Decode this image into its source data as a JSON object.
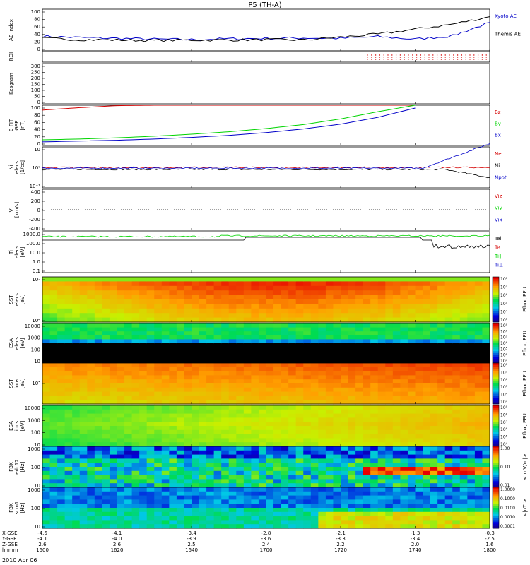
{
  "title": "P5 (TH-A)",
  "date_label": "2010 Apr 06",
  "colors": {
    "red": "#d40000",
    "green": "#00d400",
    "blue": "#0000c8",
    "black": "#000000"
  },
  "chart_data": [
    {
      "id": "ae",
      "type": "line",
      "ylabel": "AE Index",
      "yticks": [
        "100",
        "80",
        "60",
        "40",
        "20",
        "0"
      ],
      "legend": [
        {
          "name": "Kyoto AE",
          "color": "#0000c8"
        },
        {
          "name": "Themis AE",
          "color": "#000000"
        }
      ],
      "x_minutes": [
        0,
        10,
        20,
        30,
        40,
        50,
        60,
        70,
        80,
        90,
        100,
        110,
        120
      ],
      "series": [
        {
          "name": "Kyoto AE",
          "values": [
            35,
            32,
            30,
            28,
            27,
            29,
            30,
            31,
            30,
            34,
            28,
            36,
            68
          ]
        },
        {
          "name": "Themis AE",
          "values": [
            30,
            27,
            26,
            25,
            26,
            26,
            27,
            26,
            33,
            40,
            52,
            64,
            82
          ]
        }
      ]
    },
    {
      "id": "roi",
      "type": "scatter",
      "ylabel": "ROI"
    },
    {
      "id": "kgm",
      "type": "line",
      "ylabel": "Kesgram",
      "yticks": [
        "300",
        "250",
        "200",
        "150",
        "100",
        "50",
        "0"
      ]
    },
    {
      "id": "bfield",
      "type": "line",
      "ylabel": "B FIT\nGSE\n[nT]",
      "yticks": [
        "100",
        "80",
        "60",
        "40",
        "20",
        "0"
      ],
      "legend": [
        {
          "name": "Bz",
          "color": "#d40000"
        },
        {
          "name": "By",
          "color": "#00d400"
        },
        {
          "name": "Bx",
          "color": "#0000c8"
        }
      ],
      "x_minutes": [
        0,
        10,
        20,
        30,
        40,
        50,
        60,
        70,
        80,
        90,
        100
      ],
      "series": [
        {
          "name": "Bz",
          "values": [
            88,
            94,
            99,
            100,
            100,
            100,
            100,
            100,
            100,
            100,
            100
          ]
        },
        {
          "name": "By",
          "values": [
            14,
            16,
            19,
            23,
            28,
            34,
            42,
            52,
            66,
            84,
            100
          ]
        },
        {
          "name": "Bx",
          "values": [
            9,
            11,
            13,
            16,
            20,
            25,
            32,
            41,
            53,
            70,
            93
          ]
        }
      ]
    },
    {
      "id": "density",
      "type": "line",
      "ylabel": "Ni\nelecs\n[1/cc]",
      "yticks": [
        "10",
        "10⁰",
        "10⁻¹"
      ],
      "legend": [
        {
          "name": "Ne",
          "color": "#d40000"
        },
        {
          "name": "Ni",
          "color": "#000000"
        },
        {
          "name": "Npot",
          "color": "#0000c8"
        }
      ]
    },
    {
      "id": "velocity",
      "type": "line",
      "ylabel": "Vi\n[km/s]",
      "yticks": [
        "400",
        "200",
        "0",
        "-200",
        "-400"
      ],
      "legend": [
        {
          "name": "Viz",
          "color": "#d40000"
        },
        {
          "name": "Viy",
          "color": "#00d400"
        },
        {
          "name": "Vix",
          "color": "#0000c8"
        }
      ]
    },
    {
      "id": "temp",
      "type": "line",
      "ylabel": "Ti\nelecs\n[eV]",
      "yticks": [
        "1000.0",
        "100.0",
        "10.0",
        "1.0",
        "0.1"
      ],
      "legend": [
        {
          "name": "Tell",
          "color": "#000000"
        },
        {
          "name": "Te⊥",
          "color": "#d40000"
        },
        {
          "name": "Ti∥",
          "color": "#00d400"
        },
        {
          "name": "Ti⊥",
          "color": "#0000c8"
        }
      ]
    },
    {
      "id": "sst_e",
      "type": "heatmap",
      "ylabel": "SST\nelecs\n[eV]",
      "yticks": [
        "10⁵",
        "10⁴"
      ],
      "cbar": [
        "10⁸",
        "10⁷",
        "10⁶",
        "10⁵",
        "10⁴",
        "10³"
      ],
      "cbar_label": "Eflux, EFU"
    },
    {
      "id": "esa_e",
      "type": "heatmap",
      "ylabel": "ESA\nelecs\n[eV]",
      "yticks": [
        "10000",
        "1000",
        "100",
        "10"
      ],
      "cbar": [
        "10⁹",
        "10⁸",
        "10⁷",
        "10⁶",
        "10⁵",
        "10⁴",
        "10³"
      ],
      "cbar_label": "Eflux, EFU"
    },
    {
      "id": "sst_i",
      "type": "heatmap",
      "ylabel": "SST\nions\n[eV]",
      "yticks": [
        "10⁵"
      ],
      "cbar": [
        "10⁸",
        "10⁷",
        "10⁶",
        "10⁵",
        "10⁴",
        "10³"
      ],
      "cbar_label": "Eflux, EFU"
    },
    {
      "id": "esa_i",
      "type": "heatmap",
      "ylabel": "ESA\nions\n[eV]",
      "yticks": [
        "10000",
        "1000",
        "100",
        "10"
      ],
      "cbar": [
        "10⁹",
        "10⁸",
        "10⁷",
        "10⁶",
        "10⁵",
        "10⁴"
      ],
      "cbar_label": "Eflux, EFU"
    },
    {
      "id": "fbk_e",
      "type": "heatmap",
      "ylabel": "FBK\nedc12\n[Hz]",
      "yticks": [
        "1000",
        "100",
        "10"
      ],
      "cbar": [
        "1.00",
        "0.10",
        "0.01"
      ],
      "cbar_label": "<|mV/m|>"
    },
    {
      "id": "fbk_b",
      "type": "heatmap",
      "ylabel": "FBK\nscm1\n[Hz]",
      "yticks": [
        "1000",
        "100",
        "10"
      ],
      "cbar": [
        "1.0000",
        "0.1000",
        "0.0100",
        "0.0010",
        "0.0001"
      ],
      "cbar_label": "<|nT|>"
    }
  ],
  "xaxis": {
    "row_names": [
      "X-GSE",
      "Y-GSE",
      "Z-GSE",
      "hhmm"
    ],
    "ticks": [
      {
        "x": "-4.6",
        "y": "-4.1",
        "z": "2.6",
        "t": "1600"
      },
      {
        "x": "-4.1",
        "y": "-4.0",
        "z": "2.6",
        "t": "1620"
      },
      {
        "x": "-3.4",
        "y": "-3.9",
        "z": "2.5",
        "t": "1640"
      },
      {
        "x": "-2.8",
        "y": "-3.6",
        "z": "2.4",
        "t": "1700"
      },
      {
        "x": "-2.1",
        "y": "-3.3",
        "z": "2.2",
        "t": "1720"
      },
      {
        "x": "-1.3",
        "y": "-3.4",
        "z": "2.0",
        "t": "1740"
      },
      {
        "x": "-0.3",
        "y": "-2.5",
        "z": "1.6",
        "t": "1800"
      }
    ]
  }
}
